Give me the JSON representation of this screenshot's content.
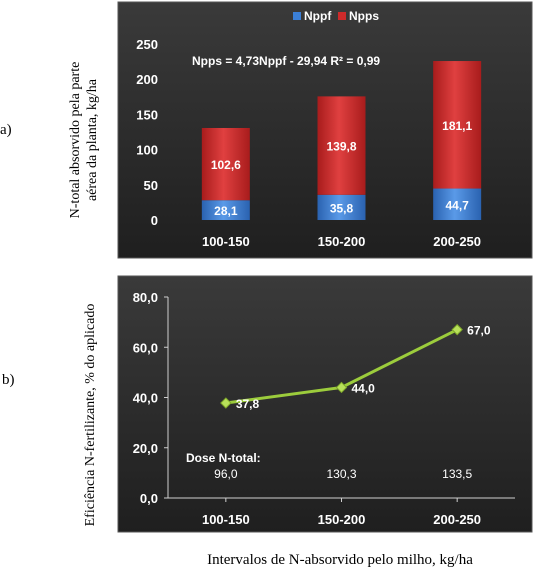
{
  "panels": {
    "a_label": "a)",
    "b_label": "b)",
    "common_xlabel": "Intervalos de N-absorvido pelo milho, kg/ha"
  },
  "colors": {
    "background": "#2b2b2b",
    "nppf": "#3b7fd6",
    "npps": "#cc2a2a",
    "line": "#9ccc3c"
  },
  "chart_data": [
    {
      "type": "bar",
      "stacked": true,
      "categories": [
        "100-150",
        "150-200",
        "200-250"
      ],
      "series": [
        {
          "name": "Nppf",
          "values": [
            28.1,
            35.8,
            44.7
          ],
          "labels": [
            "28,1",
            "35,8",
            "44,7"
          ]
        },
        {
          "name": "Npps",
          "values": [
            102.6,
            139.8,
            181.1
          ],
          "labels": [
            "102,6",
            "139,8",
            "181,1"
          ]
        }
      ],
      "ylabel_line1": "N-total absorvido pela parte",
      "ylabel_line2": "aérea da planta, kg/ha",
      "yticks": [
        "0",
        "50",
        "100",
        "150",
        "200",
        "250"
      ],
      "ylim": [
        0,
        250
      ],
      "annotation": "Npps = 4,73Nppf - 29,94  R² = 0,99",
      "legend": "top-center",
      "grid": false
    },
    {
      "type": "line",
      "categories": [
        "100-150",
        "150-200",
        "200-250"
      ],
      "series": [
        {
          "values": [
            37.8,
            44.0,
            67.0
          ],
          "labels": [
            "37,8",
            "44,0",
            "67,0"
          ]
        }
      ],
      "ylabel_line1": "Eficiência N-fertilizante, % do aplicado",
      "yticks": [
        "0,0",
        "20,0",
        "40,0",
        "60,0",
        "80,0"
      ],
      "ylim": [
        0,
        80
      ],
      "dose_title": "Dose N-total:",
      "dose_values": [
        "96,0",
        "130,3",
        "133,5"
      ],
      "grid": false
    }
  ]
}
